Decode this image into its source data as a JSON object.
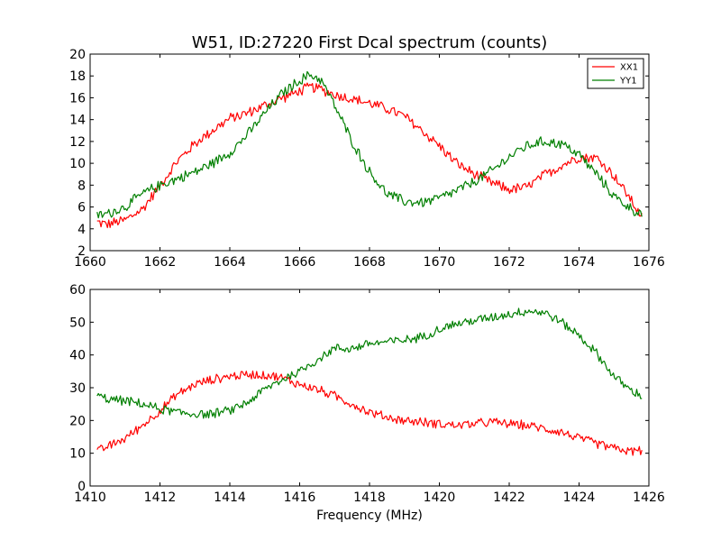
{
  "chart_data": [
    {
      "type": "line",
      "title": "W51, ID:27220 First Dcal spectrum (counts)",
      "xlabel": "",
      "ylabel": "",
      "xlim": [
        1660,
        1676
      ],
      "ylim": [
        2,
        20
      ],
      "xticks": [
        "1660",
        "1662",
        "1664",
        "1666",
        "1668",
        "1670",
        "1672",
        "1674",
        "1676"
      ],
      "yticks": [
        "2",
        "4",
        "6",
        "8",
        "10",
        "12",
        "14",
        "16",
        "18",
        "20"
      ],
      "grid": false,
      "legend": "top-right",
      "series": [
        {
          "name": "XX1",
          "color": "#ff0000",
          "x": [
            1660.2,
            1660.5,
            1661.0,
            1661.5,
            1662.0,
            1662.5,
            1663.0,
            1663.5,
            1664.0,
            1664.5,
            1665.0,
            1665.5,
            1666.0,
            1666.3,
            1666.6,
            1667.0,
            1667.5,
            1668.0,
            1668.5,
            1669.0,
            1669.5,
            1670.0,
            1670.5,
            1671.0,
            1671.5,
            1672.0,
            1672.5,
            1673.0,
            1673.5,
            1674.0,
            1674.5,
            1675.0,
            1675.5,
            1675.8
          ],
          "y": [
            4.6,
            4.4,
            4.8,
            5.8,
            8.0,
            10.2,
            11.8,
            13.0,
            14.1,
            14.6,
            15.3,
            16.0,
            16.6,
            17.0,
            16.8,
            16.3,
            15.9,
            15.5,
            15.0,
            14.3,
            13.0,
            11.6,
            10.0,
            9.0,
            8.2,
            7.6,
            7.8,
            8.9,
            9.8,
            10.6,
            10.5,
            8.9,
            6.6,
            5.0
          ]
        },
        {
          "name": "YY1",
          "color": "#007f00",
          "x": [
            1660.2,
            1660.5,
            1661.0,
            1661.5,
            1662.0,
            1662.5,
            1663.0,
            1663.5,
            1664.0,
            1664.5,
            1665.0,
            1665.5,
            1666.0,
            1666.3,
            1666.6,
            1667.0,
            1667.5,
            1668.0,
            1668.5,
            1669.0,
            1669.5,
            1670.0,
            1670.5,
            1671.0,
            1671.5,
            1672.0,
            1672.5,
            1673.0,
            1673.5,
            1674.0,
            1674.5,
            1675.0,
            1675.5,
            1675.8
          ],
          "y": [
            5.2,
            5.4,
            6.0,
            7.2,
            8.0,
            8.6,
            9.2,
            10.0,
            11.0,
            12.6,
            14.6,
            16.4,
            17.6,
            18.1,
            17.7,
            15.3,
            12.0,
            9.2,
            7.2,
            6.5,
            6.4,
            6.8,
            7.5,
            8.3,
            9.3,
            10.6,
            11.6,
            12.0,
            11.8,
            10.8,
            9.0,
            7.0,
            5.8,
            5.4
          ]
        }
      ]
    },
    {
      "type": "line",
      "title": "",
      "xlabel": "Frequency (MHz)",
      "ylabel": "",
      "xlim": [
        1410,
        1426
      ],
      "ylim": [
        0,
        60
      ],
      "xticks": [
        "1410",
        "1412",
        "1414",
        "1416",
        "1418",
        "1420",
        "1422",
        "1424",
        "1426"
      ],
      "yticks": [
        "0",
        "10",
        "20",
        "30",
        "40",
        "50",
        "60"
      ],
      "grid": false,
      "series": [
        {
          "name": "XX1",
          "color": "#ff0000",
          "x": [
            1410.2,
            1410.5,
            1411.0,
            1411.5,
            1412.0,
            1412.5,
            1413.0,
            1413.5,
            1414.0,
            1414.5,
            1415.0,
            1415.5,
            1416.0,
            1416.5,
            1417.0,
            1417.5,
            1418.0,
            1418.5,
            1419.0,
            1419.5,
            1420.0,
            1420.5,
            1421.0,
            1421.5,
            1422.0,
            1422.5,
            1423.0,
            1423.5,
            1424.0,
            1424.5,
            1425.0,
            1425.5,
            1425.8
          ],
          "y": [
            10.5,
            12.0,
            14.5,
            18.5,
            23.0,
            28.0,
            31.0,
            32.5,
            33.5,
            34.0,
            34.0,
            33.0,
            31.0,
            29.5,
            27.5,
            25.0,
            22.5,
            21.0,
            20.0,
            19.5,
            19.0,
            18.5,
            19.0,
            19.5,
            19.0,
            18.5,
            17.5,
            16.5,
            14.5,
            13.0,
            11.5,
            10.5,
            11.0
          ]
        },
        {
          "name": "YY1",
          "color": "#007f00",
          "x": [
            1410.2,
            1410.5,
            1411.0,
            1411.5,
            1412.0,
            1412.5,
            1413.0,
            1413.5,
            1414.0,
            1414.5,
            1415.0,
            1415.5,
            1416.0,
            1416.5,
            1417.0,
            1417.5,
            1418.0,
            1418.5,
            1419.0,
            1419.5,
            1420.0,
            1420.5,
            1421.0,
            1421.5,
            1422.0,
            1422.5,
            1423.0,
            1423.5,
            1424.0,
            1424.5,
            1425.0,
            1425.5,
            1425.8
          ],
          "y": [
            27.5,
            26.5,
            26.0,
            25.0,
            23.5,
            22.5,
            22.0,
            22.0,
            23.0,
            25.5,
            29.5,
            32.5,
            35.0,
            38.5,
            42.0,
            42.0,
            43.5,
            44.0,
            44.5,
            45.5,
            48.0,
            49.5,
            50.5,
            51.5,
            52.5,
            53.5,
            53.0,
            50.0,
            46.0,
            40.5,
            33.5,
            29.0,
            27.5
          ]
        }
      ]
    }
  ]
}
